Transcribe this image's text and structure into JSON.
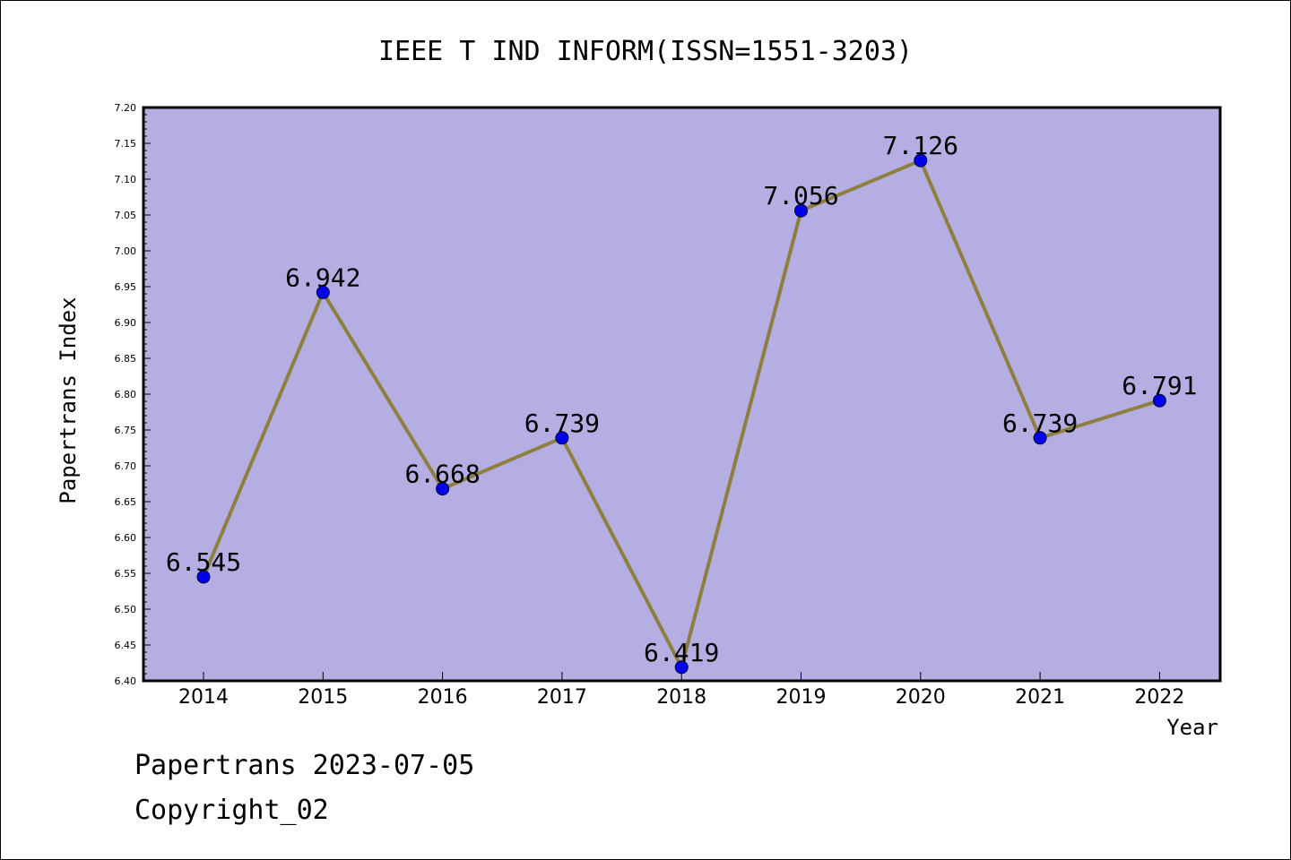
{
  "chart_data": {
    "type": "line",
    "title": "IEEE T IND INFORM(ISSN=1551-3203)",
    "xlabel": "Year",
    "ylabel": "Papertrans Index",
    "categories": [
      "2014",
      "2015",
      "2016",
      "2017",
      "2018",
      "2019",
      "2020",
      "2021",
      "2022"
    ],
    "values": [
      6.545,
      6.942,
      6.668,
      6.739,
      6.419,
      7.056,
      7.126,
      6.739,
      6.791
    ],
    "data_labels": [
      "6.545",
      "6.942",
      "6.668",
      "6.739",
      "6.419",
      "7.056",
      "7.126",
      "6.739",
      "6.791"
    ],
    "ylim": [
      6.4,
      7.2
    ],
    "yticks": [
      "6.40",
      "6.45",
      "6.50",
      "6.55",
      "6.60",
      "6.65",
      "6.70",
      "6.75",
      "6.80",
      "6.85",
      "6.90",
      "6.95",
      "7.00",
      "7.05",
      "7.10",
      "7.15",
      "7.20"
    ],
    "grid": false,
    "colors": {
      "plot_background": "#b4aee2",
      "line": "#8f7f3f",
      "marker": "#0000ee"
    }
  },
  "footer": {
    "line1": "Papertrans 2023-07-05",
    "line2": "Copyright_02"
  }
}
